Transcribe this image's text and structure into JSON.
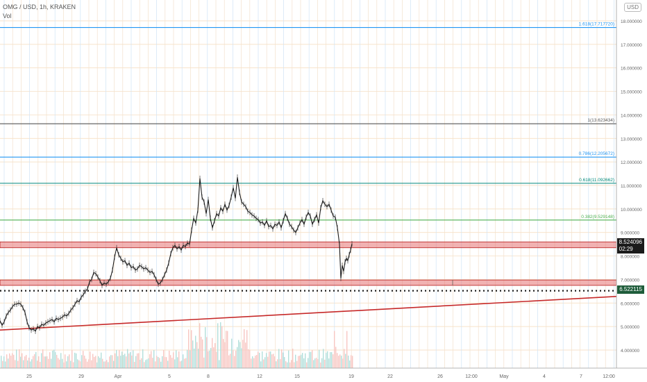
{
  "header": {
    "symbol_line": "OMG / USD, 1h, KRAKEN",
    "indicator_label": "Vol",
    "currency_button": "USD"
  },
  "chart_data": {
    "type": "line",
    "symbol": "OMG / USD",
    "interval": "1h",
    "exchange": "KRAKEN",
    "ylim": [
      3.3,
      18.4
    ],
    "y_ticks": [
      "4.000000",
      "5.000000",
      "6.000000",
      "7.000000",
      "8.000000",
      "9.000000",
      "10.000000",
      "11.000000",
      "12.000000",
      "13.000000",
      "14.000000",
      "15.000000",
      "16.000000",
      "17.000000",
      "18.000000"
    ],
    "x_ticks": [
      "25",
      "29",
      "Apr",
      "5",
      "8",
      "12",
      "15",
      "19",
      "22",
      "26",
      "12:00",
      "May",
      "4",
      "7",
      "12:00"
    ],
    "fib_levels": [
      {
        "label": "1.618(17.717720)",
        "value": 17.71772,
        "color": "#2196f3"
      },
      {
        "label": "1(13.623434)",
        "value": 13.623434,
        "color": "#555555"
      },
      {
        "label": "0.786(12.205672)",
        "value": 12.205672,
        "color": "#2196f3"
      },
      {
        "label": "0.618(11.092662)",
        "value": 11.092662,
        "color": "#00897b"
      },
      {
        "label": "0.382(9.529148)",
        "value": 9.529148,
        "color": "#4caf50"
      }
    ],
    "zones": [
      {
        "from": 8.35,
        "to": 8.6,
        "color": "#e57373"
      },
      {
        "from": 6.75,
        "to": 6.98,
        "color": "#e57373"
      }
    ],
    "dotted_level": 6.522115,
    "trendline": {
      "from": [
        0,
        4.85
      ],
      "to": [
        1,
        6.28
      ],
      "color": "#c62828"
    },
    "last_price": "8.524096",
    "countdown": "02:29",
    "dotted_price_label": "6.522115",
    "price_series": [
      [
        0,
        5.25
      ],
      [
        3,
        5.05
      ],
      [
        6,
        5.2
      ],
      [
        9,
        5.45
      ],
      [
        12,
        5.6
      ],
      [
        15,
        5.7
      ],
      [
        18,
        5.85
      ],
      [
        21,
        5.95
      ],
      [
        24,
        5.95
      ],
      [
        27,
        6.0
      ],
      [
        30,
        5.95
      ],
      [
        33,
        5.8
      ],
      [
        36,
        5.6
      ],
      [
        39,
        5.2
      ],
      [
        42,
        4.95
      ],
      [
        45,
        4.85
      ],
      [
        48,
        4.9
      ],
      [
        51,
        4.8
      ],
      [
        54,
        5.0
      ],
      [
        57,
        4.95
      ],
      [
        60,
        5.1
      ],
      [
        63,
        5.05
      ],
      [
        66,
        5.15
      ],
      [
        69,
        5.2
      ],
      [
        72,
        5.25
      ],
      [
        75,
        5.3
      ],
      [
        78,
        5.2
      ],
      [
        81,
        5.35
      ],
      [
        84,
        5.3
      ],
      [
        87,
        5.35
      ],
      [
        90,
        5.4
      ],
      [
        93,
        5.5
      ],
      [
        96,
        5.45
      ],
      [
        99,
        5.55
      ],
      [
        102,
        5.7
      ],
      [
        105,
        5.8
      ],
      [
        108,
        5.95
      ],
      [
        111,
        6.1
      ],
      [
        114,
        6.05
      ],
      [
        117,
        6.25
      ],
      [
        120,
        6.35
      ],
      [
        123,
        6.5
      ],
      [
        126,
        6.6
      ],
      [
        129,
        6.9
      ],
      [
        132,
        7.0
      ],
      [
        135,
        7.3
      ],
      [
        138,
        7.25
      ],
      [
        141,
        7.1
      ],
      [
        144,
        6.95
      ],
      [
        147,
        6.75
      ],
      [
        150,
        6.85
      ],
      [
        153,
        6.8
      ],
      [
        156,
        6.9
      ],
      [
        159,
        7.05
      ],
      [
        162,
        7.4
      ],
      [
        165,
        7.95
      ],
      [
        168,
        8.35
      ],
      [
        171,
        8.05
      ],
      [
        174,
        7.9
      ],
      [
        177,
        7.75
      ],
      [
        180,
        7.8
      ],
      [
        183,
        7.6
      ],
      [
        186,
        7.7
      ],
      [
        189,
        7.5
      ],
      [
        192,
        7.55
      ],
      [
        195,
        7.4
      ],
      [
        198,
        7.45
      ],
      [
        201,
        7.6
      ],
      [
        204,
        7.55
      ],
      [
        207,
        7.45
      ],
      [
        210,
        7.5
      ],
      [
        213,
        7.4
      ],
      [
        216,
        7.3
      ],
      [
        219,
        7.35
      ],
      [
        222,
        7.2
      ],
      [
        225,
        7.0
      ],
      [
        228,
        6.8
      ],
      [
        231,
        6.85
      ],
      [
        234,
        7.0
      ],
      [
        237,
        7.2
      ],
      [
        240,
        7.4
      ],
      [
        243,
        7.7
      ],
      [
        246,
        8.1
      ],
      [
        249,
        8.35
      ],
      [
        252,
        8.45
      ],
      [
        255,
        8.3
      ],
      [
        258,
        8.4
      ],
      [
        261,
        8.25
      ],
      [
        264,
        8.45
      ],
      [
        267,
        8.4
      ],
      [
        270,
        8.55
      ],
      [
        273,
        8.5
      ],
      [
        276,
        9.1
      ],
      [
        279,
        9.6
      ],
      [
        282,
        9.4
      ],
      [
        285,
        9.95
      ],
      [
        288,
        11.3
      ],
      [
        291,
        10.5
      ],
      [
        294,
        10.3
      ],
      [
        297,
        9.8
      ],
      [
        300,
        10.4
      ],
      [
        303,
        9.6
      ],
      [
        306,
        9.2
      ],
      [
        309,
        9.5
      ],
      [
        312,
        9.8
      ],
      [
        315,
        9.7
      ],
      [
        318,
        10.05
      ],
      [
        321,
        9.9
      ],
      [
        324,
        10.2
      ],
      [
        327,
        9.95
      ],
      [
        330,
        10.15
      ],
      [
        333,
        10.5
      ],
      [
        336,
        10.9
      ],
      [
        339,
        10.45
      ],
      [
        342,
        11.35
      ],
      [
        345,
        10.7
      ],
      [
        348,
        10.3
      ],
      [
        351,
        10.2
      ],
      [
        354,
        10.1
      ],
      [
        357,
        9.9
      ],
      [
        360,
        9.85
      ],
      [
        363,
        9.75
      ],
      [
        366,
        9.7
      ],
      [
        369,
        9.6
      ],
      [
        372,
        9.55
      ],
      [
        375,
        9.4
      ],
      [
        378,
        9.45
      ],
      [
        381,
        9.3
      ],
      [
        384,
        9.5
      ],
      [
        387,
        9.25
      ],
      [
        390,
        9.3
      ],
      [
        393,
        9.15
      ],
      [
        396,
        9.35
      ],
      [
        399,
        9.3
      ],
      [
        402,
        9.45
      ],
      [
        405,
        9.2
      ],
      [
        408,
        9.5
      ],
      [
        411,
        9.8
      ],
      [
        414,
        9.6
      ],
      [
        417,
        9.35
      ],
      [
        420,
        9.25
      ],
      [
        423,
        9.1
      ],
      [
        426,
        9.0
      ],
      [
        429,
        9.2
      ],
      [
        432,
        9.4
      ],
      [
        435,
        9.55
      ],
      [
        438,
        9.35
      ],
      [
        441,
        9.65
      ],
      [
        444,
        9.85
      ],
      [
        447,
        9.7
      ],
      [
        450,
        9.35
      ],
      [
        453,
        9.55
      ],
      [
        456,
        9.75
      ],
      [
        459,
        9.4
      ],
      [
        462,
        10.05
      ],
      [
        465,
        10.35
      ],
      [
        468,
        10.2
      ],
      [
        471,
        10.1
      ],
      [
        474,
        10.2
      ],
      [
        477,
        9.95
      ],
      [
        480,
        9.7
      ],
      [
        483,
        9.65
      ],
      [
        486,
        9.2
      ],
      [
        489,
        8.5
      ],
      [
        491,
        7.05
      ],
      [
        493,
        7.6
      ],
      [
        495,
        7.35
      ],
      [
        497,
        7.75
      ],
      [
        499,
        7.9
      ],
      [
        501,
        7.8
      ],
      [
        503,
        8.05
      ],
      [
        505,
        8.25
      ],
      [
        507,
        8.52
      ]
    ]
  }
}
